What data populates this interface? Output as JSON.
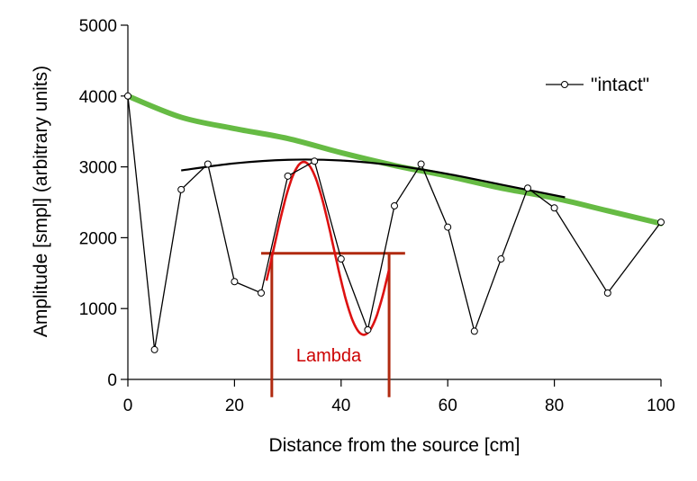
{
  "chart_data": {
    "type": "line",
    "xlabel": "Distance from the source [cm]",
    "ylabel": "Amplitude [smpl] (arbitrary units)",
    "xlim": [
      0,
      100
    ],
    "ylim": [
      0,
      5000
    ],
    "x_ticks": [
      0,
      20,
      40,
      60,
      80,
      100
    ],
    "y_ticks": [
      0,
      1000,
      2000,
      3000,
      4000,
      5000
    ],
    "grid": false,
    "legend_position": "top-right",
    "series": [
      {
        "name": "\"intact\"",
        "color": "#000000",
        "marker": "open-circle",
        "x": [
          0,
          5,
          10,
          15,
          20,
          25,
          30,
          35,
          40,
          45,
          50,
          55,
          60,
          65,
          70,
          75,
          80,
          90,
          100
        ],
        "y": [
          4000,
          420,
          2680,
          3040,
          1380,
          1220,
          2870,
          3080,
          1700,
          700,
          2450,
          3040,
          2150,
          680,
          1700,
          2700,
          2420,
          1220,
          2220
        ]
      }
    ],
    "overlays": {
      "trend_line": {
        "color": "#66bb44",
        "x": [
          0,
          10,
          20,
          30,
          40,
          50,
          60,
          70,
          80,
          90,
          100
        ],
        "y": [
          4000,
          3700,
          3540,
          3400,
          3200,
          3020,
          2870,
          2700,
          2560,
          2380,
          2200
        ]
      },
      "envelope_curve": {
        "color": "#000000",
        "x": [
          10,
          20,
          30,
          40,
          50,
          60,
          70,
          82
        ],
        "y": [
          2950,
          3050,
          3100,
          3090,
          3020,
          2900,
          2750,
          2570
        ]
      },
      "sine_fit": {
        "color": "#dd1111",
        "x_start": 26,
        "x_end": 49,
        "center": 1850,
        "amplitude": 1220,
        "wavelength": 22.5,
        "peak_x": 33
      },
      "wavelength_marker": {
        "color": "#b02a10",
        "label": "Lambda",
        "label_color": "#cc0000",
        "level": 1780,
        "x_from": 27,
        "x_to": 49,
        "bar_x_range": [
          25,
          52
        ],
        "tick_bottom": -250
      }
    }
  }
}
